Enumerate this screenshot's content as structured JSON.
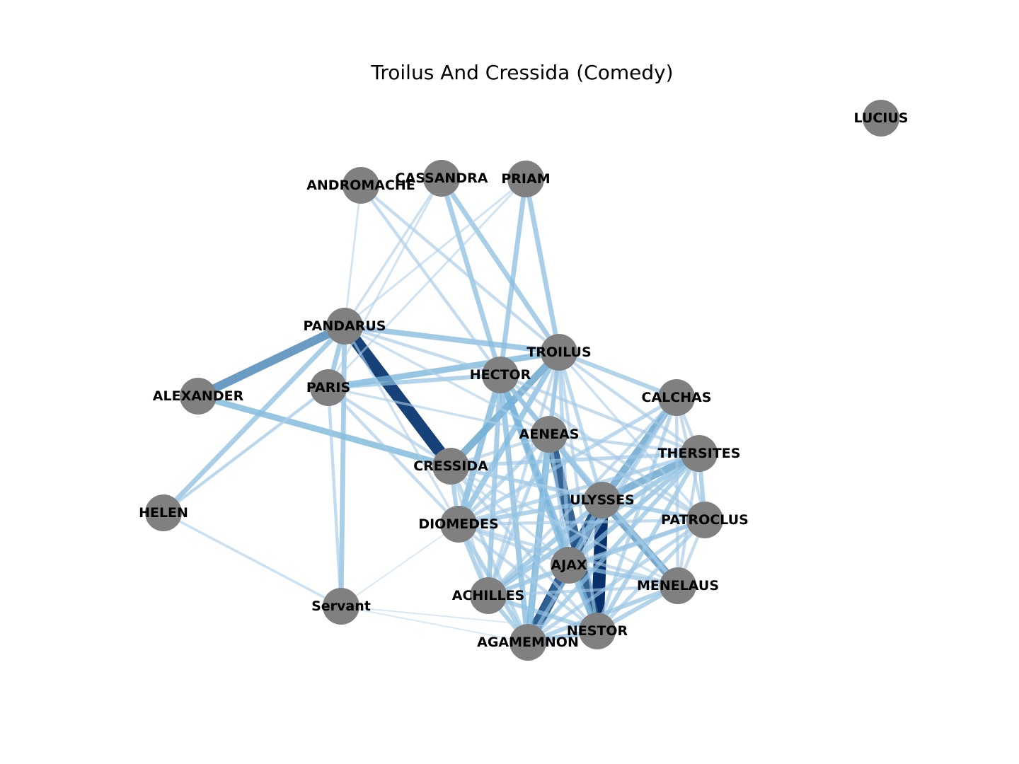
{
  "title": "Troilus And Cressida (Comedy)",
  "colors": {
    "node": "#808080",
    "edge_light": "#c6dbef",
    "edge_mid": "#6baed6",
    "edge_dark": "#08306b"
  },
  "nodes": [
    {
      "id": "LUCIUS",
      "label": "LUCIUS"
    },
    {
      "id": "ANDROMACHE",
      "label": "ANDROMACHE"
    },
    {
      "id": "CASSANDRA",
      "label": "CASSANDRA"
    },
    {
      "id": "PRIAM",
      "label": "PRIAM"
    },
    {
      "id": "PANDARUS",
      "label": "PANDARUS"
    },
    {
      "id": "TROILUS",
      "label": "TROILUS"
    },
    {
      "id": "HECTOR",
      "label": "HECTOR"
    },
    {
      "id": "ALEXANDER",
      "label": "ALEXANDER"
    },
    {
      "id": "PARIS",
      "label": "PARIS"
    },
    {
      "id": "CALCHAS",
      "label": "CALCHAS"
    },
    {
      "id": "AENEAS",
      "label": "AENEAS"
    },
    {
      "id": "THERSITES",
      "label": "THERSITES"
    },
    {
      "id": "CRESSIDA",
      "label": "CRESSIDA"
    },
    {
      "id": "ULYSSES",
      "label": "ULYSSES"
    },
    {
      "id": "HELEN",
      "label": "HELEN"
    },
    {
      "id": "DIOMEDES",
      "label": "DIOMEDES"
    },
    {
      "id": "PATROCLUS",
      "label": "PATROCLUS"
    },
    {
      "id": "AJAX",
      "label": "AJAX"
    },
    {
      "id": "MENELAUS",
      "label": "MENELAUS"
    },
    {
      "id": "ACHILLES",
      "label": "ACHILLES"
    },
    {
      "id": "Servant",
      "label": "Servant"
    },
    {
      "id": "NESTOR",
      "label": "NESTOR"
    },
    {
      "id": "AGAMEMNON",
      "label": "AGAMEMNON"
    }
  ],
  "edges": [
    {
      "source": "ULYSSES",
      "target": "NESTOR",
      "weight": 1.0
    },
    {
      "source": "PANDARUS",
      "target": "CRESSIDA",
      "weight": 0.95
    },
    {
      "source": "ULYSSES",
      "target": "AGAMEMNON",
      "weight": 0.9
    },
    {
      "source": "AENEAS",
      "target": "NESTOR",
      "weight": 0.85
    },
    {
      "source": "AJAX",
      "target": "AGAMEMNON",
      "weight": 0.8
    },
    {
      "source": "PANDARUS",
      "target": "ALEXANDER",
      "weight": 0.65
    },
    {
      "source": "ULYSSES",
      "target": "MENELAUS",
      "weight": 0.6
    },
    {
      "source": "ULYSSES",
      "target": "CALCHAS",
      "weight": 0.55
    },
    {
      "source": "ULYSSES",
      "target": "THERSITES",
      "weight": 0.55
    },
    {
      "source": "TROILUS",
      "target": "CRESSIDA",
      "weight": 0.55
    },
    {
      "source": "ALEXANDER",
      "target": "CRESSIDA",
      "weight": 0.45
    },
    {
      "source": "PARIS",
      "target": "TROILUS",
      "weight": 0.45
    },
    {
      "source": "AENEAS",
      "target": "AGAMEMNON",
      "weight": 0.5
    },
    {
      "source": "HECTOR",
      "target": "AJAX",
      "weight": 0.45
    },
    {
      "source": "HECTOR",
      "target": "NESTOR",
      "weight": 0.45
    },
    {
      "source": "HECTOR",
      "target": "DIOMEDES",
      "weight": 0.45
    },
    {
      "source": "TROILUS",
      "target": "DIOMEDES",
      "weight": 0.4
    },
    {
      "source": "PANDARUS",
      "target": "TROILUS",
      "weight": 0.4
    },
    {
      "source": "PANDARUS",
      "target": "HELEN",
      "weight": 0.35
    },
    {
      "source": "PANDARUS",
      "target": "PARIS",
      "weight": 0.35
    },
    {
      "source": "PANDARUS",
      "target": "Servant",
      "weight": 0.35
    },
    {
      "source": "CASSANDRA",
      "target": "TROILUS",
      "weight": 0.35
    },
    {
      "source": "CASSANDRA",
      "target": "HECTOR",
      "weight": 0.35
    },
    {
      "source": "PRIAM",
      "target": "TROILUS",
      "weight": 0.35
    },
    {
      "source": "PRIAM",
      "target": "HECTOR",
      "weight": 0.35
    },
    {
      "source": "HECTOR",
      "target": "AGAMEMNON",
      "weight": 0.4
    },
    {
      "source": "HECTOR",
      "target": "ACHILLES",
      "weight": 0.35
    },
    {
      "source": "HECTOR",
      "target": "ULYSSES",
      "weight": 0.35
    },
    {
      "source": "THERSITES",
      "target": "AJAX",
      "weight": 0.35
    },
    {
      "source": "THERSITES",
      "target": "ACHILLES",
      "weight": 0.35
    },
    {
      "source": "THERSITES",
      "target": "PATROCLUS",
      "weight": 0.3
    },
    {
      "source": "THERSITES",
      "target": "AGAMEMNON",
      "weight": 0.3
    },
    {
      "source": "THERSITES",
      "target": "NESTOR",
      "weight": 0.3
    },
    {
      "source": "ULYSSES",
      "target": "ACHILLES",
      "weight": 0.35
    },
    {
      "source": "ULYSSES",
      "target": "AJAX",
      "weight": 0.35
    },
    {
      "source": "ULYSSES",
      "target": "DIOMEDES",
      "weight": 0.3
    },
    {
      "source": "ULYSSES",
      "target": "PATROCLUS",
      "weight": 0.3
    },
    {
      "source": "ACHILLES",
      "target": "AGAMEMNON",
      "weight": 0.3
    },
    {
      "source": "ACHILLES",
      "target": "PATROCLUS",
      "weight": 0.3
    },
    {
      "source": "ACHILLES",
      "target": "NESTOR",
      "weight": 0.3
    },
    {
      "source": "AJAX",
      "target": "NESTOR",
      "weight": 0.3
    },
    {
      "source": "AJAX",
      "target": "MENELAUS",
      "weight": 0.3
    },
    {
      "source": "AGAMEMNON",
      "target": "NESTOR",
      "weight": 0.35
    },
    {
      "source": "AGAMEMNON",
      "target": "MENELAUS",
      "weight": 0.3
    },
    {
      "source": "NESTOR",
      "target": "MENELAUS",
      "weight": 0.3
    },
    {
      "source": "DIOMEDES",
      "target": "AGAMEMNON",
      "weight": 0.3
    },
    {
      "source": "DIOMEDES",
      "target": "ACHILLES",
      "weight": 0.3
    },
    {
      "source": "DIOMEDES",
      "target": "CALCHAS",
      "weight": 0.25
    },
    {
      "source": "DIOMEDES",
      "target": "THERSITES",
      "weight": 0.25
    },
    {
      "source": "CRESSIDA",
      "target": "ULYSSES",
      "weight": 0.25
    },
    {
      "source": "CRESSIDA",
      "target": "THERSITES",
      "weight": 0.25
    },
    {
      "source": "CRESSIDA",
      "target": "DIOMEDES",
      "weight": 0.3
    },
    {
      "source": "CRESSIDA",
      "target": "AGAMEMNON",
      "weight": 0.25
    },
    {
      "source": "TROILUS",
      "target": "CALCHAS",
      "weight": 0.3
    },
    {
      "source": "TROILUS",
      "target": "AENEAS",
      "weight": 0.3
    },
    {
      "source": "TROILUS",
      "target": "ULYSSES",
      "weight": 0.25
    },
    {
      "source": "TROILUS",
      "target": "AJAX",
      "weight": 0.25
    },
    {
      "source": "TROILUS",
      "target": "AGAMEMNON",
      "weight": 0.25
    },
    {
      "source": "TROILUS",
      "target": "THERSITES",
      "weight": 0.2
    },
    {
      "source": "TROILUS",
      "target": "NESTOR",
      "weight": 0.2
    },
    {
      "source": "TROILUS",
      "target": "PATROCLUS",
      "weight": 0.15
    },
    {
      "source": "TROILUS",
      "target": "ACHILLES",
      "weight": 0.2
    },
    {
      "source": "HECTOR",
      "target": "AENEAS",
      "weight": 0.25
    },
    {
      "source": "HECTOR",
      "target": "PANDARUS",
      "weight": 0.2
    },
    {
      "source": "HECTOR",
      "target": "PARIS",
      "weight": 0.3
    },
    {
      "source": "HECTOR",
      "target": "MENELAUS",
      "weight": 0.25
    },
    {
      "source": "HECTOR",
      "target": "PATROCLUS",
      "weight": 0.2
    },
    {
      "source": "HECTOR",
      "target": "THERSITES",
      "weight": 0.2
    },
    {
      "source": "AENEAS",
      "target": "ULYSSES",
      "weight": 0.3
    },
    {
      "source": "AENEAS",
      "target": "AJAX",
      "weight": 0.25
    },
    {
      "source": "AENEAS",
      "target": "DIOMEDES",
      "weight": 0.25
    },
    {
      "source": "AENEAS",
      "target": "ACHILLES",
      "weight": 0.25
    },
    {
      "source": "AENEAS",
      "target": "MENELAUS",
      "weight": 0.2
    },
    {
      "source": "AENEAS",
      "target": "PATROCLUS",
      "weight": 0.2
    },
    {
      "source": "AENEAS",
      "target": "THERSITES",
      "weight": 0.2
    },
    {
      "source": "AENEAS",
      "target": "CRESSIDA",
      "weight": 0.2
    },
    {
      "source": "CALCHAS",
      "target": "AGAMEMNON",
      "weight": 0.25
    },
    {
      "source": "CALCHAS",
      "target": "NESTOR",
      "weight": 0.25
    },
    {
      "source": "CALCHAS",
      "target": "AJAX",
      "weight": 0.2
    },
    {
      "source": "CALCHAS",
      "target": "MENELAUS",
      "weight": 0.2
    },
    {
      "source": "CALCHAS",
      "target": "PATROCLUS",
      "weight": 0.2
    },
    {
      "source": "CALCHAS",
      "target": "ACHILLES",
      "weight": 0.2
    },
    {
      "source": "CALCHAS",
      "target": "THERSITES",
      "weight": 0.2
    },
    {
      "source": "PATROCLUS",
      "target": "NESTOR",
      "weight": 0.25
    },
    {
      "source": "PATROCLUS",
      "target": "AJAX",
      "weight": 0.25
    },
    {
      "source": "PATROCLUS",
      "target": "AGAMEMNON",
      "weight": 0.25
    },
    {
      "source": "PATROCLUS",
      "target": "MENELAUS",
      "weight": 0.2
    },
    {
      "source": "THERSITES",
      "target": "MENELAUS",
      "weight": 0.2
    },
    {
      "source": "DIOMEDES",
      "target": "AJAX",
      "weight": 0.2
    },
    {
      "source": "DIOMEDES",
      "target": "NESTOR",
      "weight": 0.2
    },
    {
      "source": "DIOMEDES",
      "target": "MENELAUS",
      "weight": 0.2
    },
    {
      "source": "DIOMEDES",
      "target": "PATROCLUS",
      "weight": 0.2
    },
    {
      "source": "ACHILLES",
      "target": "AJAX",
      "weight": 0.2
    },
    {
      "source": "ACHILLES",
      "target": "MENELAUS",
      "weight": 0.2
    },
    {
      "source": "PARIS",
      "target": "CRESSIDA",
      "weight": 0.2
    },
    {
      "source": "PARIS",
      "target": "DIOMEDES",
      "weight": 0.2
    },
    {
      "source": "PARIS",
      "target": "AENEAS",
      "weight": 0.15
    },
    {
      "source": "PARIS",
      "target": "HELEN",
      "weight": 0.2
    },
    {
      "source": "PARIS",
      "target": "Servant",
      "weight": 0.2
    },
    {
      "source": "PANDARUS",
      "target": "AENEAS",
      "weight": 0.15
    },
    {
      "source": "PANDARUS",
      "target": "DIOMEDES",
      "weight": 0.15
    },
    {
      "source": "ANDROMACHE",
      "target": "TROILUS",
      "weight": 0.2
    },
    {
      "source": "ANDROMACHE",
      "target": "HECTOR",
      "weight": 0.2
    },
    {
      "source": "ANDROMACHE",
      "target": "PANDARUS",
      "weight": 0.1
    },
    {
      "source": "CASSANDRA",
      "target": "PANDARUS",
      "weight": 0.15
    },
    {
      "source": "CASSANDRA",
      "target": "PARIS",
      "weight": 0.12
    },
    {
      "source": "PRIAM",
      "target": "PANDARUS",
      "weight": 0.12
    },
    {
      "source": "PRIAM",
      "target": "PARIS",
      "weight": 0.12
    },
    {
      "source": "HELEN",
      "target": "Servant",
      "weight": 0.15
    },
    {
      "source": "Servant",
      "target": "AGAMEMNON",
      "weight": 0.05
    },
    {
      "source": "Servant",
      "target": "NESTOR",
      "weight": 0.05
    },
    {
      "source": "Servant",
      "target": "DIOMEDES",
      "weight": 0.05
    },
    {
      "source": "HELEN",
      "target": "PARIS",
      "weight": 0.1
    },
    {
      "source": "CRESSIDA",
      "target": "NESTOR",
      "weight": 0.2
    },
    {
      "source": "CRESSIDA",
      "target": "MENELAUS",
      "weight": 0.15
    },
    {
      "source": "CRESSIDA",
      "target": "PATROCLUS",
      "weight": 0.15
    },
    {
      "source": "CRESSIDA",
      "target": "AJAX",
      "weight": 0.15
    },
    {
      "source": "CRESSIDA",
      "target": "ACHILLES",
      "weight": 0.15
    }
  ]
}
